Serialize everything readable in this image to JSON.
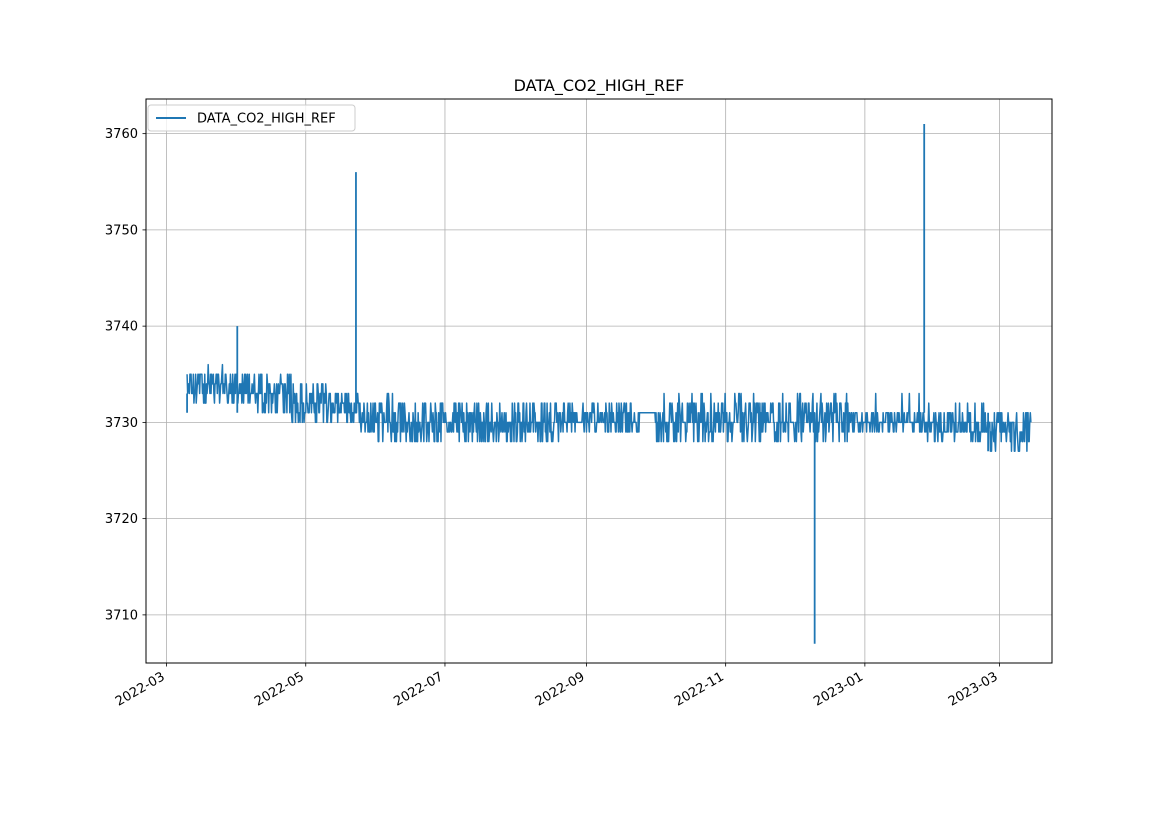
{
  "chart_data": {
    "type": "line",
    "title": "DATA_CO2_HIGH_REF",
    "xlabel": "",
    "ylabel": "",
    "x_axis": "date",
    "xlim": [
      "2022-02-20",
      "2023-03-24"
    ],
    "ylim": [
      3705,
      3763.6
    ],
    "x_ticks": [
      "2022-03-01",
      "2022-05-01",
      "2022-07-01",
      "2022-09-01",
      "2022-11-01",
      "2023-01-01",
      "2023-03-01"
    ],
    "x_tick_labels": [
      "2022-03",
      "2022-05",
      "2022-07",
      "2022-09",
      "2022-11",
      "2023-01",
      "2023-03"
    ],
    "y_ticks": [
      3710,
      3720,
      3730,
      3740,
      3750,
      3760
    ],
    "y_tick_labels": [
      "3710",
      "3720",
      "3730",
      "3740",
      "3750",
      "3760"
    ],
    "grid": true,
    "legend_position": "upper left",
    "series": [
      {
        "name": "DATA_CO2_HIGH_REF",
        "color": "#1f77b4",
        "segments": [
          {
            "start": "2022-03-10",
            "end": "2022-04-05",
            "low": 3732,
            "high": 3735,
            "occasional_high": 3736
          },
          {
            "start": "2022-04-05",
            "end": "2022-04-25",
            "low": 3731,
            "high": 3735
          },
          {
            "start": "2022-04-25",
            "end": "2022-05-10",
            "low": 3730,
            "high": 3734
          },
          {
            "start": "2022-05-10",
            "end": "2022-05-25",
            "low": 3730,
            "high": 3733
          },
          {
            "start": "2022-05-25",
            "end": "2022-06-15",
            "low": 3728,
            "high": 3732,
            "occasional_high": 3733
          },
          {
            "start": "2022-06-15",
            "end": "2022-08-20",
            "low": 3728,
            "high": 3732
          },
          {
            "start": "2022-08-20",
            "end": "2022-09-25",
            "low": 3729,
            "high": 3732
          },
          {
            "start": "2022-09-25",
            "end": "2022-10-01",
            "low": 3731,
            "high": 3731
          },
          {
            "start": "2022-10-01",
            "end": "2022-12-25",
            "low": 3728,
            "high": 3732,
            "occasional_high": 3733
          },
          {
            "start": "2022-12-25",
            "end": "2023-01-27",
            "low": 3729,
            "high": 3731,
            "occasional_high": 3733
          },
          {
            "start": "2023-01-27",
            "end": "2023-02-25",
            "low": 3728,
            "high": 3731,
            "occasional_high": 3732
          },
          {
            "start": "2023-02-25",
            "end": "2023-03-15",
            "low": 3727,
            "high": 3731
          }
        ],
        "spikes": [
          {
            "x": "2022-03-10",
            "y": 3733
          },
          {
            "x": "2022-04-01",
            "y": 3740
          },
          {
            "x": "2022-05-23",
            "y": 3756
          },
          {
            "x": "2022-12-10",
            "y": 3707
          },
          {
            "x": "2023-01-27",
            "y": 3761
          },
          {
            "x": "2023-02-24",
            "y": 3727
          },
          {
            "x": "2023-03-15",
            "y": 3731
          }
        ]
      }
    ]
  }
}
